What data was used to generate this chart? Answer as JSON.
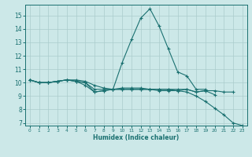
{
  "title": "",
  "xlabel": "Humidex (Indice chaleur)",
  "ylabel": "",
  "bg_color": "#cce8e8",
  "line_color": "#1a7070",
  "grid_color": "#aacccc",
  "xlim": [
    -0.5,
    23.5
  ],
  "ylim": [
    6.8,
    15.8
  ],
  "yticks": [
    7,
    8,
    9,
    10,
    11,
    12,
    13,
    14,
    15
  ],
  "xticks": [
    0,
    1,
    2,
    3,
    4,
    5,
    6,
    7,
    8,
    9,
    10,
    11,
    12,
    13,
    14,
    15,
    16,
    17,
    18,
    19,
    20,
    21,
    22,
    23
  ],
  "lines": [
    [
      10.2,
      10.0,
      10.0,
      10.1,
      10.2,
      10.1,
      9.8,
      9.3,
      9.4,
      9.5,
      9.5,
      9.5,
      9.5,
      9.5,
      9.5,
      9.5,
      9.5,
      9.5,
      9.3,
      9.4,
      9.4,
      9.3,
      9.3,
      null
    ],
    [
      10.2,
      10.0,
      10.0,
      10.1,
      10.2,
      10.1,
      10.0,
      9.5,
      9.5,
      9.5,
      11.5,
      13.2,
      14.8,
      15.5,
      14.2,
      12.5,
      10.8,
      10.5,
      9.5,
      9.5,
      null,
      null,
      null,
      null
    ],
    [
      10.2,
      10.0,
      10.0,
      10.1,
      10.2,
      10.1,
      10.0,
      9.3,
      9.4,
      9.5,
      9.6,
      9.6,
      9.6,
      9.5,
      9.5,
      9.5,
      9.4,
      9.3,
      9.0,
      8.6,
      8.1,
      7.6,
      7.0,
      6.8
    ],
    [
      10.2,
      10.0,
      10.0,
      10.1,
      10.2,
      10.2,
      10.1,
      9.8,
      9.6,
      9.5,
      9.5,
      9.5,
      9.5,
      9.5,
      9.4,
      9.4,
      9.4,
      9.5,
      9.3,
      9.4,
      9.1,
      null,
      null,
      null
    ]
  ],
  "xlabel_fontsize": 5.5,
  "ytick_fontsize": 5.5,
  "xtick_fontsize": 4.2
}
